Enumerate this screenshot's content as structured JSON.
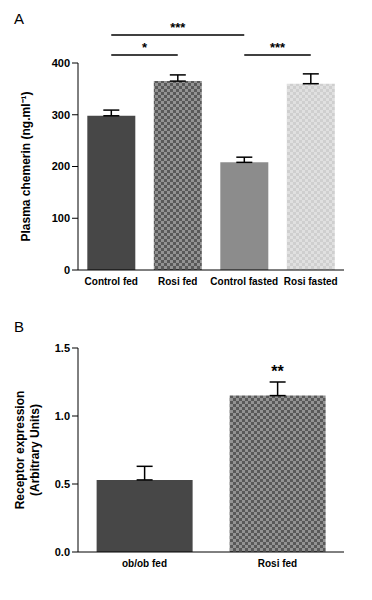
{
  "chart_data": [
    {
      "type": "bar",
      "title": "A",
      "categories": [
        "Control fed",
        "Rosi fed",
        "Control fasted",
        "Rosi fasted"
      ],
      "values": [
        298,
        365,
        208,
        360
      ],
      "errors": [
        11,
        12,
        10,
        19
      ],
      "colors": [
        "#474747",
        "#595959",
        "#8c8c8c",
        "#cfcfcf"
      ],
      "ylabel": "Plasma chemerin (ng.ml⁻¹)",
      "ylim": [
        0,
        400
      ],
      "yticks": [
        0,
        100,
        200,
        300,
        400
      ],
      "annotations": [
        {
          "text": "*",
          "categories": [
            "Control fed",
            "Rosi fed"
          ]
        },
        {
          "text": "***",
          "categories": [
            "Control fed",
            "Control fasted"
          ]
        },
        {
          "text": "***",
          "categories": [
            "Control fasted",
            "Rosi fasted"
          ]
        }
      ]
    },
    {
      "type": "bar",
      "title": "B",
      "categories": [
        "ob/ob fed",
        "Rosi fed"
      ],
      "values": [
        0.53,
        1.15
      ],
      "errors": [
        0.1,
        0.1
      ],
      "colors": [
        "#474747",
        "#595959"
      ],
      "ylabel": "Receptor expression (Arbitrary Units)",
      "ylim": [
        0,
        1.5
      ],
      "yticks": [
        {
          "value": 0,
          "label": "0.0"
        },
        {
          "value": 0.5,
          "label": "0.5"
        },
        {
          "value": 1,
          "label": "1.0"
        },
        {
          "value": 1.5,
          "label": "1.5"
        }
      ],
      "annotations": [
        {
          "text": "**",
          "categories": [
            "Rosi fed"
          ]
        }
      ]
    }
  ]
}
